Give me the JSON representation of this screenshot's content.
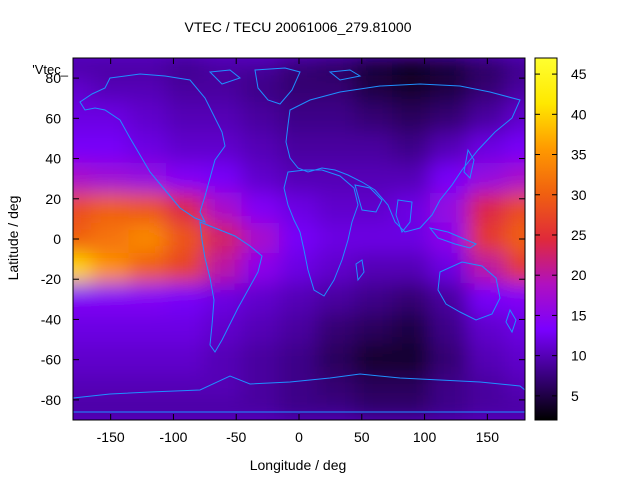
{
  "chart_data": {
    "type": "heatmap",
    "title": "VTEC / TECU 20061006_279.81000",
    "xlabel": "Longitude / deg",
    "ylabel": "Latitude / deg",
    "legend_label": "'Vtec_",
    "xlim": [
      -180,
      180
    ],
    "ylim": [
      -90,
      90
    ],
    "x_ticks": [
      -150,
      -100,
      -50,
      0,
      50,
      100,
      150
    ],
    "y_ticks": [
      -80,
      -60,
      -40,
      -20,
      0,
      20,
      40,
      60,
      80
    ],
    "colorbar": {
      "range": [
        2,
        47
      ],
      "ticks": [
        5,
        10,
        15,
        20,
        25,
        30,
        35,
        40,
        45
      ],
      "colormap": [
        "#000000",
        "#3a0080",
        "#7a00ff",
        "#b010c0",
        "#e02a3a",
        "#f06010",
        "#ff9a00",
        "#ffe800",
        "#ffff30"
      ]
    },
    "grid": false,
    "z_grid": {
      "lon": [
        -180,
        -150,
        -120,
        -90,
        -60,
        -30,
        0,
        30,
        60,
        90,
        120,
        150,
        180
      ],
      "lat": [
        87.5,
        75,
        60,
        45,
        30,
        15,
        0,
        -15,
        -30,
        -45,
        -60,
        -75,
        -87.5
      ],
      "values": [
        [
          9,
          9,
          9,
          8,
          9,
          9,
          7,
          6,
          4,
          3,
          4,
          6,
          8
        ],
        [
          11,
          10,
          10,
          9,
          9,
          8,
          7,
          7,
          5,
          4,
          5,
          7,
          9
        ],
        [
          12,
          12,
          11,
          10,
          10,
          9,
          8,
          8,
          7,
          6,
          7,
          9,
          11
        ],
        [
          13,
          13,
          12,
          11,
          11,
          10,
          9,
          9,
          9,
          8,
          10,
          12,
          13
        ],
        [
          18,
          17,
          16,
          14,
          13,
          11,
          10,
          10,
          10,
          10,
          13,
          16,
          18
        ],
        [
          28,
          30,
          29,
          24,
          18,
          14,
          12,
          11,
          11,
          12,
          16,
          24,
          28
        ],
        [
          30,
          32,
          34,
          29,
          23,
          18,
          13,
          12,
          12,
          12,
          15,
          26,
          30
        ],
        [
          40,
          35,
          30,
          27,
          20,
          15,
          12,
          11,
          10,
          10,
          12,
          20,
          26
        ],
        [
          14,
          14,
          14,
          13,
          12,
          11,
          10,
          9,
          8,
          7,
          9,
          13,
          14
        ],
        [
          12,
          12,
          12,
          12,
          11,
          10,
          9,
          7,
          6,
          5,
          8,
          11,
          12
        ],
        [
          11,
          11,
          11,
          11,
          10,
          9,
          8,
          6,
          4,
          4,
          7,
          10,
          11
        ],
        [
          10,
          10,
          10,
          10,
          10,
          9,
          8,
          7,
          6,
          6,
          8,
          9,
          10
        ],
        [
          9,
          9,
          9,
          9,
          9,
          9,
          8,
          8,
          7,
          7,
          8,
          9,
          9
        ]
      ]
    }
  }
}
